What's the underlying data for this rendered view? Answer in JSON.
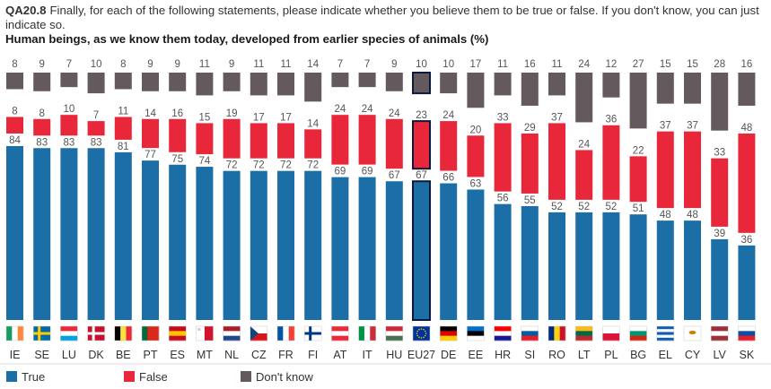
{
  "chart_data": {
    "type": "bar",
    "stacked": true,
    "question_code": "QA20.8",
    "question_text": "Finally, for each of the following statements, please indicate whether you believe them to be true or false. If you don't know, you can just indicate so.",
    "title": "Human beings, as we know them today, developed from earlier species of animals (%)",
    "categories": [
      "IE",
      "SE",
      "LU",
      "DK",
      "BE",
      "PT",
      "ES",
      "MT",
      "NL",
      "CZ",
      "FR",
      "FI",
      "AT",
      "IT",
      "HU",
      "EU27",
      "DE",
      "EE",
      "HR",
      "SI",
      "RO",
      "LT",
      "PL",
      "BG",
      "EL",
      "CY",
      "LV",
      "SK"
    ],
    "highlight_category": "EU27",
    "series": [
      {
        "name": "True",
        "color": "#1b6ea6",
        "values": [
          84,
          83,
          83,
          83,
          81,
          77,
          75,
          74,
          72,
          72,
          72,
          72,
          69,
          69,
          67,
          67,
          66,
          63,
          56,
          55,
          52,
          52,
          52,
          51,
          48,
          48,
          39,
          36
        ]
      },
      {
        "name": "False",
        "color": "#e8273a",
        "values": [
          8,
          8,
          10,
          7,
          11,
          14,
          16,
          15,
          19,
          17,
          17,
          14,
          24,
          24,
          24,
          23,
          24,
          20,
          33,
          29,
          37,
          24,
          36,
          22,
          37,
          37,
          33,
          48
        ]
      },
      {
        "name": "Don't know",
        "color": "#645a5d",
        "values": [
          8,
          9,
          7,
          10,
          8,
          9,
          9,
          11,
          9,
          11,
          11,
          14,
          7,
          7,
          9,
          10,
          10,
          17,
          11,
          16,
          11,
          24,
          12,
          27,
          15,
          15,
          28,
          16
        ]
      }
    ],
    "legend": [
      "True",
      "False",
      "Don't know"
    ],
    "legend_position": "bottom-left"
  }
}
